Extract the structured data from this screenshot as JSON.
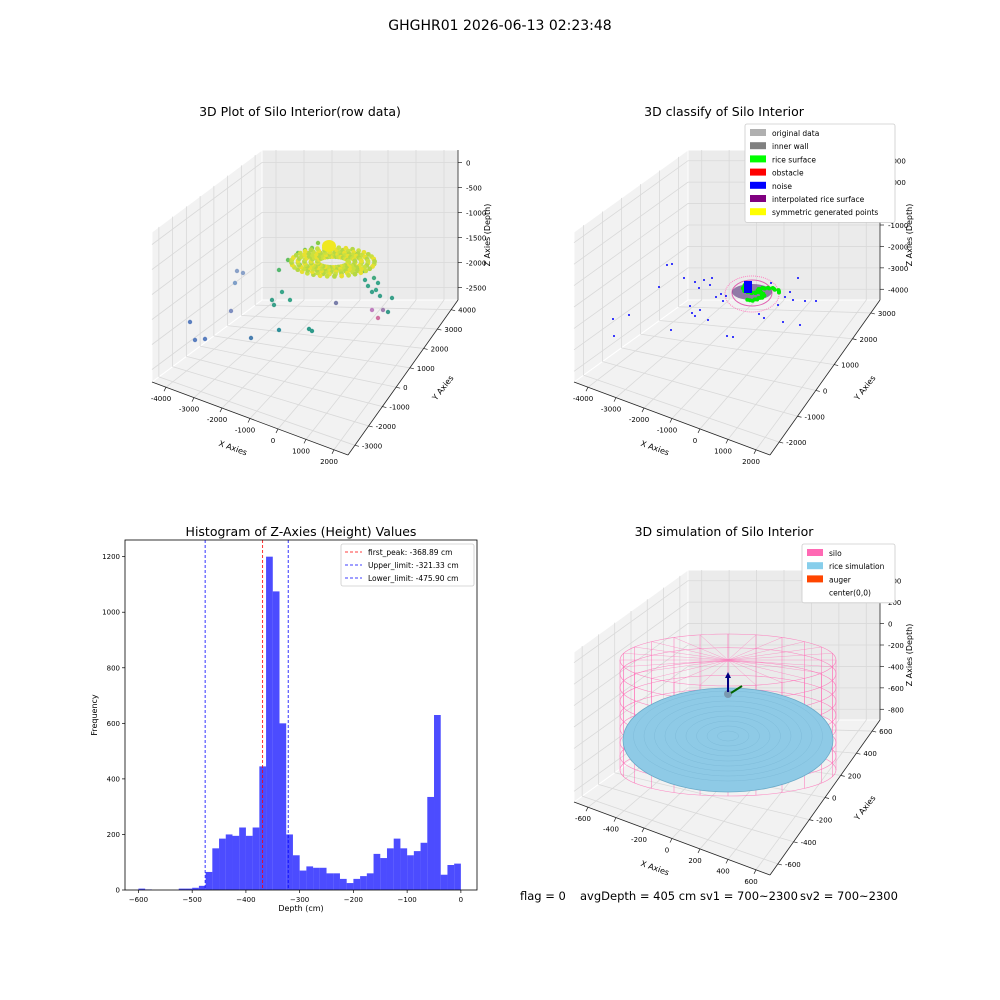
{
  "figure": {
    "suptitle": "GHGHR01 2026-06-13 02:23:48",
    "footer": {
      "flag": "flag = 0",
      "avg_depth": "avgDepth = 405 cm",
      "sv1": "sv1 = 700~2300",
      "sv2": "sv2 = 700~2300"
    }
  },
  "chart_data": [
    {
      "type": "scatter",
      "title": "3D Plot of Silo Interior(row data)",
      "xlabel": "X Axies",
      "ylabel": "Y Axies",
      "zlabel": "Z Axies (Depth)",
      "x_ticks": [
        "-4000",
        "-3000",
        "-2000",
        "-1000",
        "0",
        "1000",
        "2000"
      ],
      "y_ticks": [
        "-3000",
        "-2000",
        "-1000",
        "0",
        "1000",
        "2000",
        "3000",
        "4000"
      ],
      "z_ticks": [
        "0",
        "-500",
        "-1000",
        "-1500",
        "-2000",
        "-2500"
      ],
      "grid": true
    },
    {
      "type": "scatter",
      "title": "3D classify of Silo Interior",
      "xlabel": "X Axies",
      "ylabel": "Y Axies",
      "zlabel": "Z Axies (Depth)",
      "x_ticks": [
        "-4000",
        "-3000",
        "-2000",
        "-1000",
        "0",
        "1000",
        "2000"
      ],
      "y_ticks": [
        "-2000",
        "-1000",
        "0",
        "1000",
        "2000",
        "3000"
      ],
      "z_ticks": [
        "2000",
        "1000",
        "0",
        "-1000",
        "-2000",
        "-3000",
        "-4000"
      ],
      "legend": [
        {
          "label": "original data",
          "color": "#b0b0b0"
        },
        {
          "label": "inner wall",
          "color": "#808080"
        },
        {
          "label": "rice surface",
          "color": "#00ff00"
        },
        {
          "label": "obstacle",
          "color": "#ff0000"
        },
        {
          "label": "noise",
          "color": "#0000ff"
        },
        {
          "label": "interpolated rice surface",
          "color": "#800080"
        },
        {
          "label": "symmetric generated points",
          "color": "#ffff00"
        }
      ],
      "legend_position": "top-right",
      "grid": true
    },
    {
      "type": "bar",
      "title": "Histogram of Z-Axies (Height) Values",
      "xlabel": "Depth (cm)",
      "ylabel": "Frequency",
      "xlim": [
        -625,
        30
      ],
      "ylim": [
        0,
        1260
      ],
      "x_ticks": [
        -600,
        -500,
        -400,
        -300,
        -200,
        -100,
        0
      ],
      "y_ticks": [
        0,
        200,
        400,
        600,
        800,
        1000,
        1200
      ],
      "bin_width": 12.5,
      "bins_start": [
        -600,
        -587.5,
        -525,
        -512.5,
        -500,
        -487.5,
        -475,
        -462.5,
        -450,
        -437.5,
        -425,
        -412.5,
        -400,
        -387.5,
        -375,
        -362.5,
        -350,
        -337.5,
        -325,
        -312.5,
        -300,
        -287.5,
        -275,
        -262.5,
        -250,
        -237.5,
        -225,
        -212.5,
        -200,
        -187.5,
        -175,
        -162.5,
        -150,
        -137.5,
        -125,
        -112.5,
        -100,
        -87.5,
        -75,
        -62.5,
        -50,
        -37.5,
        -25,
        -12.5
      ],
      "counts": [
        5,
        2,
        5,
        5,
        8,
        15,
        65,
        150,
        185,
        200,
        195,
        225,
        195,
        225,
        445,
        1200,
        1075,
        600,
        200,
        125,
        70,
        85,
        80,
        80,
        60,
        60,
        40,
        25,
        40,
        50,
        60,
        130,
        115,
        150,
        185,
        150,
        125,
        140,
        170,
        335,
        630,
        55,
        90,
        95
      ],
      "bar_color": "#0000ff",
      "lines": [
        {
          "label": "first_peak: -368.89 cm",
          "value": -368.89,
          "color": "#ff0000"
        },
        {
          "label": "Upper_limit: -321.33 cm",
          "value": -321.33,
          "color": "#0000ff"
        },
        {
          "label": "Lower_limit: -475.90 cm",
          "value": -475.9,
          "color": "#0000ff"
        }
      ],
      "legend_position": "top-right"
    },
    {
      "type": "scatter",
      "title": "3D simulation of Silo Interior",
      "xlabel": "X Axies",
      "ylabel": "Y Axies",
      "zlabel": "Z Axies (Depth)",
      "x_ticks": [
        "-600",
        "-400",
        "-200",
        "0",
        "200",
        "400",
        "600"
      ],
      "y_ticks": [
        "-600",
        "-400",
        "-200",
        "0",
        "200",
        "400",
        "600"
      ],
      "z_ticks": [
        "400",
        "200",
        "0",
        "-200",
        "-400",
        "-600",
        "-800"
      ],
      "legend": [
        {
          "label": "silo",
          "color": "#ff69b4"
        },
        {
          "label": "rice simulation",
          "color": "#87ceeb"
        },
        {
          "label": "auger",
          "color": "#ff4500"
        },
        {
          "label": "center(0,0)",
          "color": "#ffffff"
        }
      ],
      "legend_position": "top-right",
      "grid": true
    }
  ]
}
